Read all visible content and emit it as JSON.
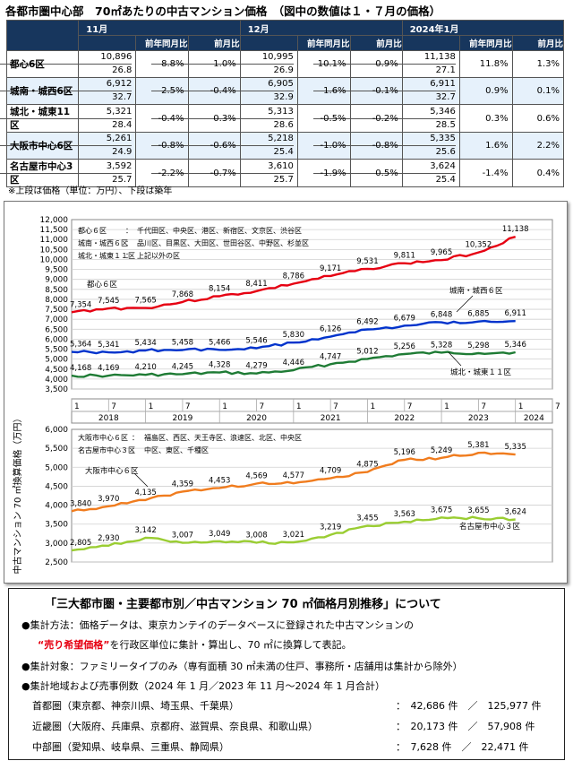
{
  "title": "各都市圏中心部　70㎡あたりの中古マンション価格　（図中の数値は１・７月の価格）",
  "table": {
    "months": [
      "11月",
      "12月",
      "2024年1月"
    ],
    "sub_headers": [
      "前年同月比",
      "前月比"
    ],
    "rows": [
      {
        "area": "都心6区",
        "blue": false,
        "cells": [
          {
            "price": "10,896",
            "age": "26.8",
            "yoy": "8.8%",
            "mom": "1.0%"
          },
          {
            "price": "10,995",
            "age": "26.9",
            "yoy": "10.1%",
            "mom": "0.9%"
          },
          {
            "price": "11,138",
            "age": "27.1",
            "yoy": "11.8%",
            "mom": "1.3%"
          }
        ]
      },
      {
        "area": "城南・城西6区",
        "blue": true,
        "cells": [
          {
            "price": "6,912",
            "age": "32.7",
            "yoy": "2.5%",
            "mom": "-0.4%"
          },
          {
            "price": "6,905",
            "age": "32.9",
            "yoy": "1.6%",
            "mom": "-0.1%"
          },
          {
            "price": "6,911",
            "age": "32.7",
            "yoy": "0.9%",
            "mom": "0.1%"
          }
        ]
      },
      {
        "area": "城北・城東11区",
        "blue": false,
        "cells": [
          {
            "price": "5,321",
            "age": "28.4",
            "yoy": "-0.4%",
            "mom": "0.3%"
          },
          {
            "price": "5,313",
            "age": "28.6",
            "yoy": "-0.5%",
            "mom": "-0.2%"
          },
          {
            "price": "5,346",
            "age": "28.5",
            "yoy": "0.3%",
            "mom": "0.6%"
          }
        ]
      },
      {
        "area": "大阪市中心6区",
        "blue": true,
        "cells": [
          {
            "price": "5,261",
            "age": "24.9",
            "yoy": "-0.8%",
            "mom": "-0.6%"
          },
          {
            "price": "5,218",
            "age": "25.4",
            "yoy": "-1.0%",
            "mom": "-0.8%"
          },
          {
            "price": "5,335",
            "age": "25.6",
            "yoy": "1.6%",
            "mom": "2.2%"
          }
        ]
      },
      {
        "area": "名古屋市中心3区",
        "blue": false,
        "cells": [
          {
            "price": "3,592",
            "age": "25.7",
            "yoy": "-2.2%",
            "mom": "-0.7%"
          },
          {
            "price": "3,610",
            "age": "25.7",
            "yoy": "-1.9%",
            "mom": "0.5%"
          },
          {
            "price": "3,624",
            "age": "25.4",
            "yoy": "-1.4%",
            "mom": "0.4%"
          }
        ]
      }
    ]
  },
  "note": "※上段は価格（単位：万円）、下段は築年",
  "chart_data": {
    "type": "line",
    "ylabel": "中古マンション 70 ㎡換算価格（万円）",
    "ylim": [
      2500,
      12000
    ],
    "yticks": [
      2500,
      3000,
      3500,
      4000,
      4500,
      5000,
      5500,
      6000,
      6500,
      7000,
      7500,
      8000,
      8500,
      9000,
      9500,
      10000,
      10500,
      11000,
      11500,
      12000
    ],
    "x_start": "2018-01",
    "x_end": "2024-07",
    "x_tick_labels": [
      "1",
      "7",
      "1",
      "7",
      "1",
      "7",
      "1",
      "7",
      "1",
      "7",
      "1",
      "7",
      "1",
      "7"
    ],
    "years": [
      "2018",
      "2019",
      "2020",
      "2021",
      "2022",
      "2023",
      "2024"
    ],
    "upper_legend": [
      {
        "name": "都心６区",
        "wards": "千代田区、中央区、港区、新宿区、文京区、渋谷区"
      },
      {
        "name": "城南・城西６区",
        "wards": "品川区、目黒区、大田区、世田谷区、中野区、杉並区"
      },
      {
        "name": "城北・城東１１区",
        "wards": "上記以外の区"
      }
    ],
    "lower_legend": [
      {
        "name": "大阪市中心６区",
        "wards": "福島区、西区、天王寺区、浪速区、北区、中央区"
      },
      {
        "name": "名古屋市中心３区",
        "wards": "中区、東区、千種区"
      }
    ],
    "series": [
      {
        "name": "都心６区",
        "color": "#e60012",
        "label_points": [
          {
            "x": "2018-01",
            "y": 7354
          },
          {
            "x": "2018-07",
            "y": 7545
          },
          {
            "x": "2019-01",
            "y": 7565
          },
          {
            "x": "2019-07",
            "y": 7868
          },
          {
            "x": "2020-01",
            "y": 8154
          },
          {
            "x": "2020-07",
            "y": 8411
          },
          {
            "x": "2021-01",
            "y": 8786
          },
          {
            "x": "2021-07",
            "y": 9171
          },
          {
            "x": "2022-01",
            "y": 9531
          },
          {
            "x": "2022-07",
            "y": 9811
          },
          {
            "x": "2023-01",
            "y": 9965
          },
          {
            "x": "2023-07",
            "y": 10352
          },
          {
            "x": "2024-01",
            "y": 11138
          }
        ]
      },
      {
        "name": "城南・城西６区",
        "color": "#0033cc",
        "label_points": [
          {
            "x": "2018-01",
            "y": 5364
          },
          {
            "x": "2018-07",
            "y": 5341
          },
          {
            "x": "2019-01",
            "y": 5434
          },
          {
            "x": "2019-07",
            "y": 5458
          },
          {
            "x": "2020-01",
            "y": 5466
          },
          {
            "x": "2020-07",
            "y": 5546
          },
          {
            "x": "2021-01",
            "y": 5830
          },
          {
            "x": "2021-07",
            "y": 6126
          },
          {
            "x": "2022-01",
            "y": 6492
          },
          {
            "x": "2022-07",
            "y": 6679
          },
          {
            "x": "2023-01",
            "y": 6848
          },
          {
            "x": "2023-07",
            "y": 6885
          },
          {
            "x": "2024-01",
            "y": 6911
          }
        ]
      },
      {
        "name": "城北・城東１１区",
        "color": "#1e7b34",
        "label_points": [
          {
            "x": "2018-01",
            "y": 4168
          },
          {
            "x": "2018-07",
            "y": 4169
          },
          {
            "x": "2019-01",
            "y": 4210
          },
          {
            "x": "2019-07",
            "y": 4245
          },
          {
            "x": "2020-01",
            "y": 4328
          },
          {
            "x": "2020-07",
            "y": 4279
          },
          {
            "x": "2021-01",
            "y": 4446
          },
          {
            "x": "2021-07",
            "y": 4747
          },
          {
            "x": "2022-01",
            "y": 5012
          },
          {
            "x": "2022-07",
            "y": 5256
          },
          {
            "x": "2023-01",
            "y": 5328
          },
          {
            "x": "2023-07",
            "y": 5298
          },
          {
            "x": "2024-01",
            "y": 5346
          }
        ]
      },
      {
        "name": "大阪市中心６区",
        "color": "#f07c1e",
        "label_points": [
          {
            "x": "2018-01",
            "y": 3840
          },
          {
            "x": "2018-07",
            "y": 3970
          },
          {
            "x": "2019-01",
            "y": 4135
          },
          {
            "x": "2019-07",
            "y": 4359
          },
          {
            "x": "2020-01",
            "y": 4453
          },
          {
            "x": "2020-07",
            "y": 4569
          },
          {
            "x": "2021-01",
            "y": 4577
          },
          {
            "x": "2021-07",
            "y": 4709
          },
          {
            "x": "2022-01",
            "y": 4875
          },
          {
            "x": "2022-07",
            "y": 5196
          },
          {
            "x": "2023-01",
            "y": 5249
          },
          {
            "x": "2023-07",
            "y": 5381
          },
          {
            "x": "2024-01",
            "y": 5335
          }
        ]
      },
      {
        "name": "名古屋市中心３区",
        "color": "#9acd32",
        "label_points": [
          {
            "x": "2018-01",
            "y": 2805
          },
          {
            "x": "2018-07",
            "y": 2930
          },
          {
            "x": "2019-01",
            "y": 3142
          },
          {
            "x": "2019-07",
            "y": 3007
          },
          {
            "x": "2020-01",
            "y": 3049
          },
          {
            "x": "2020-07",
            "y": 3008
          },
          {
            "x": "2021-01",
            "y": 3021
          },
          {
            "x": "2021-07",
            "y": 3219
          },
          {
            "x": "2022-01",
            "y": 3455
          },
          {
            "x": "2022-07",
            "y": 3563
          },
          {
            "x": "2023-01",
            "y": 3675
          },
          {
            "x": "2023-07",
            "y": 3655
          },
          {
            "x": "2024-01",
            "y": 3624
          }
        ]
      }
    ]
  },
  "info": {
    "title": "「三大都市圏・主要都市別／中古マンション 70 ㎡価格月別推移」について",
    "method_label": "●集計方法：価格データは、東京カンテイのデータベースに登録された中古マンションの",
    "method_emph": "“売り希望価格”",
    "method_rest": "を行政区単位に集計・算出し、70 ㎡に換算して表記。",
    "target": "●集計対象：ファミリータイプのみ（専有面積 30 ㎡未満の住戸、事務所・店舗用は集計から除外）",
    "region": "●集計地域および売事例数（2024 年 1 月／2023 年 11 月～2024 年 1 月合計）",
    "regions": [
      {
        "name": "首都圏（東京都、神奈川県、埼玉県、千葉県）",
        "count": "：　42,686 件　／　125,977 件"
      },
      {
        "name": "近畿圏（大阪府、兵庫県、京都府、滋賀県、奈良県、和歌山県）",
        "count": "：　20,173 件　／　57,908 件"
      },
      {
        "name": "中部圏（愛知県、岐阜県、三重県、静岡県）",
        "count": "：　7,628 件　／　22,471 件"
      }
    ]
  }
}
